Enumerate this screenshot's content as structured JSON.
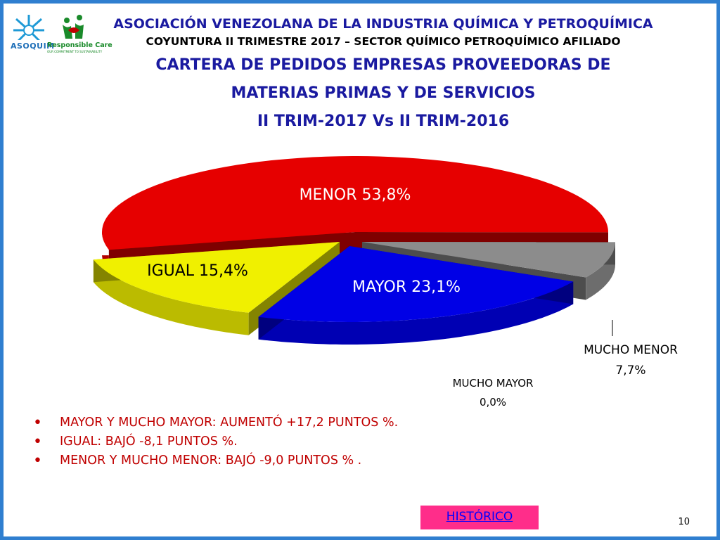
{
  "header": {
    "org_title": "ASOCIACIÓN VENEZOLANA DE LA INDUSTRIA QUÍMICA Y PETROQUÍMICA",
    "subtitle": "COYUNTURA II TRIMESTRE 2017 – SECTOR QUÍMICO PETROQUÍMICO AFILIADO",
    "logo_text": "ASOQUIM",
    "responsible_care": "Responsible Care",
    "responsible_care_tagline": "OUR COMMITMENT TO SUSTAINABILITY"
  },
  "chart_data": {
    "type": "pie",
    "title": "CARTERA DE PEDIDOS EMPRESAS PROVEEDORAS DE MATERIAS PRIMAS Y DE SERVICIOS II TRIM-2017 Vs II TRIM-2016",
    "title_lines": [
      "CARTERA DE PEDIDOS EMPRESAS PROVEEDORAS DE",
      "MATERIAS PRIMAS Y DE SERVICIOS",
      "II TRIM-2017 Vs II TRIM-2016"
    ],
    "slices": [
      {
        "label": "MENOR",
        "value": 53.8,
        "display": "MENOR 53,8%",
        "color": "#e60000"
      },
      {
        "label": "MUCHO MENOR",
        "value": 7.7,
        "display": "7,7%",
        "color": "#8c8c8c"
      },
      {
        "label": "MUCHO MAYOR",
        "value": 0.0,
        "display": "0,0%",
        "color": "#000000"
      },
      {
        "label": "MAYOR",
        "value": 23.1,
        "display": "MAYOR 23,1%",
        "color": "#0000e6"
      },
      {
        "label": "IGUAL",
        "value": 15.4,
        "display": "IGUAL 15,4%",
        "color": "#f0f000"
      }
    ],
    "legend": "none",
    "style": "3d-exploded"
  },
  "bullets": [
    "MAYOR Y MUCHO MAYOR: AUMENTÓ +17,2 PUNTOS %.",
    "IGUAL:  BAJÓ  -8,1 PUNTOS %.",
    "MENOR Y MUCHO MENOR: BAJÓ -9,0 PUNTOS % ."
  ],
  "footer": {
    "historico_label": "HISTÓRICO",
    "page_number": "10"
  }
}
